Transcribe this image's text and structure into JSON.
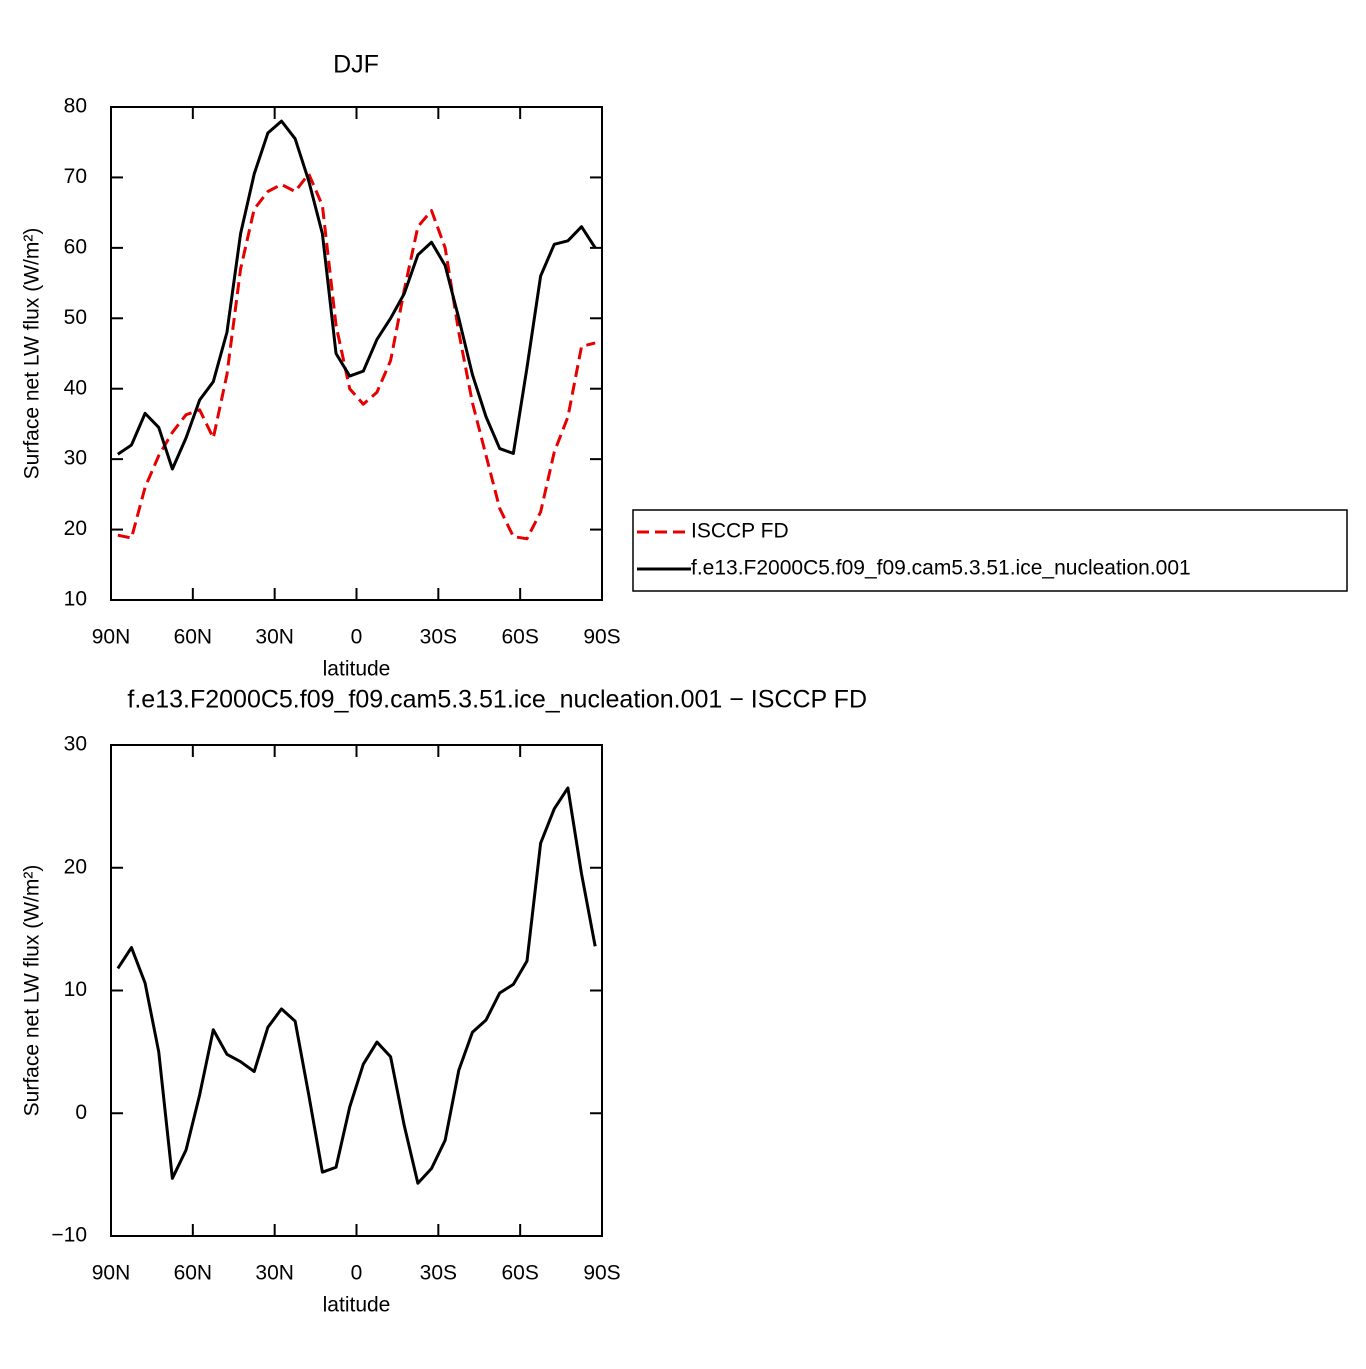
{
  "chart_data": [
    {
      "type": "line",
      "title": "DJF",
      "xlabel": "latitude",
      "ylabel": "Surface net LW flux (W/m²)",
      "x": [
        87.5,
        82.5,
        77.5,
        72.5,
        67.5,
        62.5,
        57.5,
        52.5,
        47.5,
        42.5,
        37.5,
        32.5,
        27.5,
        22.5,
        17.5,
        12.5,
        7.5,
        2.5,
        -2.5,
        -7.5,
        -12.5,
        -17.5,
        -22.5,
        -27.5,
        -32.5,
        -37.5,
        -42.5,
        -47.5,
        -52.5,
        -57.5,
        -62.5,
        -67.5,
        -72.5,
        -77.5,
        -82.5,
        -87.5
      ],
      "series": [
        {
          "name": "ISCCP FD",
          "color": "#e60000",
          "dash": "dashed",
          "values": [
            19.2,
            18.8,
            26,
            30.5,
            33.8,
            36.3,
            37,
            33,
            42,
            57,
            65.5,
            68,
            69,
            68,
            70.5,
            66,
            49,
            40,
            37.8,
            39.5,
            44,
            54,
            63,
            65.3,
            60,
            48,
            38,
            30.5,
            23,
            19,
            18.7,
            22.5,
            31,
            36,
            46,
            46.5
          ]
        },
        {
          "name": "f.e13.F2000C5.f09_f09.cam5.3.51.ice_nucleation.001",
          "color": "#000000",
          "dash": "solid",
          "values": [
            30.7,
            32,
            36.5,
            34.5,
            28.6,
            33,
            38.4,
            41,
            48,
            62,
            70.5,
            76.3,
            78,
            75.5,
            69.5,
            62,
            45,
            41.8,
            42.5,
            47,
            50,
            53.5,
            59,
            60.8,
            57.5,
            50,
            42,
            36,
            31.5,
            30.8,
            43,
            56,
            60.5,
            61,
            63,
            60
          ]
        }
      ],
      "xlim": [
        90,
        -90
      ],
      "xticks": [
        {
          "value": 90,
          "label": "90N"
        },
        {
          "value": 60,
          "label": "60N"
        },
        {
          "value": 30,
          "label": "30N"
        },
        0,
        {
          "value": -30,
          "label": "30S"
        },
        {
          "value": -60,
          "label": "60S"
        },
        {
          "value": -90,
          "label": "90S"
        }
      ],
      "ylim": [
        10,
        80
      ],
      "yticks": [
        10,
        20,
        30,
        40,
        50,
        60,
        70,
        80
      ],
      "legend": "right"
    },
    {
      "type": "line",
      "title": "f.e13.F2000C5.f09_f09.cam5.3.51.ice_nucleation.001 − ISCCP FD",
      "xlabel": "latitude",
      "ylabel": "Surface net LW flux (W/m²)",
      "x": [
        87.5,
        82.5,
        77.5,
        72.5,
        67.5,
        62.5,
        57.5,
        52.5,
        47.5,
        42.5,
        37.5,
        32.5,
        27.5,
        22.5,
        17.5,
        12.5,
        7.5,
        2.5,
        -2.5,
        -7.5,
        -12.5,
        -17.5,
        -22.5,
        -27.5,
        -32.5,
        -37.5,
        -42.5,
        -47.5,
        -52.5,
        -57.5,
        -62.5,
        -67.5,
        -72.5,
        -77.5,
        -82.5,
        -87.5
      ],
      "series": [
        {
          "color": "#000000",
          "dash": "solid",
          "values": [
            11.8,
            13.5,
            10.6,
            5,
            -5.3,
            -3,
            1.5,
            6.8,
            4.8,
            4.2,
            3.4,
            7,
            8.5,
            7.5,
            1.5,
            -4.8,
            -4.4,
            0.5,
            4,
            5.8,
            4.6,
            -1,
            -5.7,
            -4.5,
            -2.2,
            3.5,
            6.6,
            7.6,
            9.8,
            10.5,
            12.4,
            22,
            24.8,
            26.5,
            19.5,
            13.6
          ]
        }
      ],
      "xlim": [
        90,
        -90
      ],
      "xticks": [
        {
          "value": 90,
          "label": "90N"
        },
        {
          "value": 60,
          "label": "60N"
        },
        {
          "value": 30,
          "label": "30N"
        },
        0,
        {
          "value": -30,
          "label": "30S"
        },
        {
          "value": -60,
          "label": "60S"
        },
        {
          "value": -90,
          "label": "90S"
        }
      ],
      "ylim": [
        -10,
        30
      ],
      "yticks": [
        {
          "value": -10,
          "label": "−10"
        },
        0,
        10,
        20,
        30
      ]
    }
  ]
}
